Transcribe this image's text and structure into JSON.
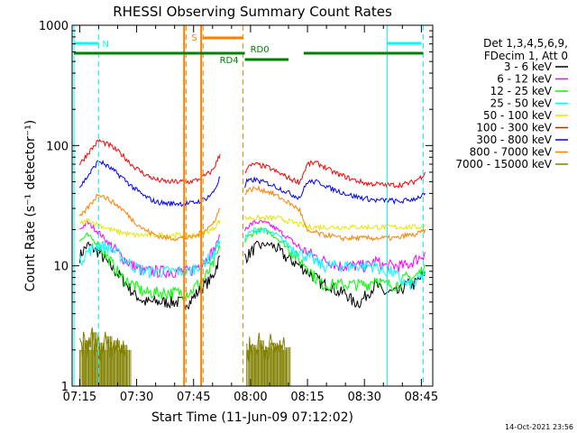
{
  "chart_data": {
    "type": "line",
    "title": "RHESSI Observing Summary Count Rates",
    "xlabel": "Start Time (11-Jun-09 07:12:02)",
    "ylabel": "Count Rate (s⁻¹ detector⁻¹)",
    "xlim": [
      -2,
      93
    ],
    "ylim": [
      1,
      1000
    ],
    "yscale": "log",
    "x_units": "minutes after 07:15",
    "x_ticks": [
      {
        "x": 0,
        "label": "07:15"
      },
      {
        "x": 15,
        "label": "07:30"
      },
      {
        "x": 30,
        "label": "07:45"
      },
      {
        "x": 45,
        "label": "08:00"
      },
      {
        "x": 60,
        "label": "08:15"
      },
      {
        "x": 75,
        "label": "08:30"
      },
      {
        "x": 90,
        "label": "08:45"
      }
    ],
    "y_ticks": [
      {
        "y": 1,
        "label": "1"
      },
      {
        "y": 10,
        "label": "10"
      },
      {
        "y": 100,
        "label": "100"
      },
      {
        "y": 1000,
        "label": "1000"
      }
    ],
    "legend": {
      "placement": "right",
      "header": [
        "Det 1,3,4,5,6,9,",
        "FDecim 1, Att 0"
      ]
    },
    "data_gap": [
      38,
      43
    ],
    "series": [
      {
        "name": "3 - 6 keV",
        "color": "#000000",
        "x": [
          0,
          2,
          5,
          8,
          11,
          14,
          17,
          20,
          23,
          26,
          29,
          31,
          33,
          35,
          36,
          37,
          43.5,
          44,
          46,
          48,
          50,
          52,
          54,
          56,
          58,
          60,
          62,
          64,
          66,
          68,
          70,
          72,
          74,
          76,
          78,
          80,
          82,
          84,
          86,
          88,
          90,
          91
        ],
        "y": [
          12,
          15,
          13,
          10,
          8,
          6,
          5,
          5,
          5,
          5,
          5,
          6,
          7,
          8,
          10,
          12,
          12,
          12,
          14,
          15,
          15,
          14,
          12,
          11,
          10,
          9,
          8,
          7,
          7,
          6,
          6,
          5,
          5,
          6,
          7,
          6,
          6,
          6,
          7,
          7,
          8,
          9
        ]
      },
      {
        "name": "6 - 12 keV",
        "color": "#ff00ff",
        "x": [
          0,
          2,
          5,
          8,
          11,
          14,
          17,
          20,
          23,
          26,
          29,
          31,
          33,
          35,
          36,
          37,
          43.5,
          44,
          46,
          48,
          50,
          52,
          54,
          56,
          58,
          60,
          62,
          64,
          66,
          68,
          70,
          72,
          74,
          76,
          78,
          80,
          82,
          84,
          86,
          88,
          90,
          91
        ],
        "y": [
          20,
          23,
          19,
          15,
          12,
          10,
          9,
          9,
          9,
          9,
          9,
          10,
          11,
          13,
          15,
          18,
          20,
          21,
          23,
          23,
          22,
          20,
          18,
          16,
          14,
          13,
          12,
          11,
          11,
          10,
          10,
          10,
          10,
          10,
          11,
          10,
          10,
          10,
          10,
          11,
          12,
          13
        ]
      },
      {
        "name": "12 - 25 keV",
        "color": "#00ff00",
        "x": [
          0,
          2,
          5,
          8,
          11,
          14,
          17,
          20,
          23,
          26,
          29,
          31,
          33,
          35,
          36,
          37,
          43.5,
          44,
          46,
          48,
          50,
          52,
          54,
          56,
          58,
          60,
          62,
          64,
          66,
          68,
          70,
          72,
          74,
          76,
          78,
          80,
          82,
          84,
          86,
          88,
          90,
          91
        ],
        "y": [
          16,
          18,
          15,
          11,
          8,
          7,
          6,
          6,
          6,
          6,
          6,
          7,
          8,
          10,
          12,
          14,
          16,
          17,
          19,
          20,
          19,
          17,
          15,
          13,
          11,
          10,
          8,
          7,
          7,
          7,
          7,
          7,
          7,
          7,
          8,
          7,
          7,
          7,
          8,
          8,
          9,
          10
        ]
      },
      {
        "name": "25 - 50 keV",
        "color": "#00ffff",
        "x": [
          0,
          2,
          5,
          8,
          11,
          14,
          17,
          20,
          23,
          26,
          29,
          31,
          33,
          35,
          36,
          37,
          43.5,
          44,
          46,
          48,
          50,
          52,
          54,
          56,
          58,
          60,
          62,
          64,
          66,
          68,
          70,
          72,
          74,
          76,
          78,
          80,
          82,
          84,
          86,
          88,
          90,
          91
        ],
        "y": [
          11,
          13,
          15,
          14,
          12,
          10,
          9,
          9,
          9,
          9,
          9,
          10,
          11,
          12,
          14,
          16,
          17,
          18,
          20,
          20,
          19,
          18,
          16,
          14,
          13,
          12,
          11,
          10,
          10,
          10,
          10,
          10,
          10,
          10,
          10,
          9,
          9,
          8,
          7,
          7,
          8,
          9
        ]
      },
      {
        "name": "50 - 100 keV",
        "color": "#e6e600",
        "x": [
          0,
          2,
          5,
          8,
          11,
          14,
          17,
          20,
          23,
          26,
          29,
          31,
          33,
          35,
          36,
          37,
          43.5,
          44,
          46,
          48,
          50,
          52,
          54,
          56,
          58,
          60,
          62,
          64,
          66,
          68,
          70,
          72,
          74,
          76,
          78,
          80,
          82,
          84,
          86,
          88,
          90,
          91
        ],
        "y": [
          22,
          24,
          22,
          20,
          19,
          18,
          18,
          18,
          18,
          18,
          18,
          18,
          19,
          20,
          22,
          24,
          25,
          25,
          25,
          25,
          25,
          25,
          24,
          23,
          22,
          21,
          21,
          21,
          21,
          21,
          21,
          21,
          21,
          21,
          21,
          21,
          21,
          21,
          21,
          21,
          21,
          22
        ]
      },
      {
        "name": "100 - 300 keV",
        "color": "#ff0000",
        "x": [
          0,
          2,
          5,
          8,
          11,
          14,
          17,
          20,
          23,
          26,
          29,
          31,
          33,
          35,
          36,
          37,
          43.5,
          44,
          46,
          48,
          50,
          52,
          54,
          56,
          58,
          60,
          62,
          64,
          66,
          68,
          70,
          72,
          74,
          76,
          78,
          80,
          82,
          84,
          86,
          88,
          90,
          91
        ],
        "y": [
          70,
          85,
          110,
          100,
          85,
          68,
          58,
          52,
          50,
          50,
          50,
          52,
          56,
          62,
          72,
          85,
          60,
          65,
          70,
          68,
          65,
          60,
          56,
          52,
          50,
          70,
          72,
          68,
          62,
          58,
          55,
          52,
          50,
          48,
          48,
          47,
          47,
          47,
          48,
          50,
          55,
          60
        ]
      },
      {
        "name": "300 - 800 keV",
        "color": "#0000ff",
        "x": [
          0,
          2,
          5,
          8,
          11,
          14,
          17,
          20,
          23,
          26,
          29,
          31,
          33,
          35,
          36,
          37,
          43.5,
          44,
          46,
          48,
          50,
          52,
          54,
          56,
          58,
          60,
          62,
          64,
          66,
          68,
          70,
          72,
          74,
          76,
          78,
          80,
          82,
          84,
          86,
          88,
          90,
          91
        ],
        "y": [
          45,
          55,
          75,
          65,
          55,
          45,
          38,
          34,
          33,
          33,
          33,
          34,
          36,
          40,
          46,
          55,
          45,
          50,
          52,
          50,
          48,
          45,
          42,
          39,
          37,
          50,
          50,
          48,
          44,
          42,
          40,
          38,
          37,
          36,
          35,
          35,
          35,
          34,
          35,
          36,
          38,
          40
        ]
      },
      {
        "name": "800 - 7000 keV",
        "color": "#ff8000",
        "x": [
          0,
          2,
          5,
          8,
          11,
          14,
          17,
          20,
          23,
          26,
          29,
          31,
          33,
          35,
          36,
          37,
          43.5,
          44,
          46,
          48,
          50,
          52,
          54,
          56,
          58,
          60,
          62,
          64,
          66,
          68,
          70,
          72,
          74,
          76,
          78,
          80,
          82,
          84,
          86,
          88,
          90,
          91
        ],
        "y": [
          25,
          30,
          40,
          35,
          30,
          24,
          20,
          18,
          17,
          17,
          17,
          18,
          20,
          22,
          26,
          30,
          40,
          42,
          44,
          43,
          41,
          38,
          35,
          32,
          29,
          19,
          19,
          18,
          18,
          17,
          17,
          17,
          17,
          17,
          17,
          17,
          17,
          17,
          18,
          18,
          19,
          20
        ]
      },
      {
        "name": "7000 - 15000 keV",
        "color": "#808000",
        "x": [
          0,
          1,
          2,
          3,
          4,
          5,
          6,
          7,
          8,
          9,
          10,
          11,
          12,
          44,
          45,
          46,
          47,
          48,
          49,
          50,
          51,
          52,
          53,
          54
        ],
        "y": [
          2,
          2.4,
          2,
          2.8,
          2,
          2.3,
          2,
          2.6,
          2.1,
          2.4,
          2,
          2.2,
          2,
          2,
          2.2,
          2,
          2.4,
          2,
          2.1,
          2.3,
          2,
          2.2,
          2,
          2.1
        ]
      }
    ],
    "annotations": {
      "saa_label": "S",
      "night_label": "N",
      "rd_labels": [
        "RD0",
        "RD4"
      ],
      "night_bars": [
        [
          -1.5,
          5
        ],
        [
          81,
          90
        ]
      ],
      "saa_bar": [
        32.5,
        43
      ],
      "rd0_bars": [
        [
          -1.5,
          43.5
        ],
        [
          59,
          90.5
        ]
      ],
      "rd4_bar": [
        43.5,
        55
      ],
      "cyan_vlines_solid": [
        -1.5,
        81
      ],
      "cyan_vlines_dashed": [
        5,
        90.5
      ],
      "orange_vlines_solid": [
        27.5,
        32
      ],
      "orange_vlines_dashed": [
        28,
        32.5,
        43
      ]
    }
  },
  "timestamp": "14-Oct-2021 23:56",
  "colors": {
    "night": "#00ffff",
    "saa": "#ff8000",
    "rd": "#008000",
    "axis": "#000000"
  }
}
